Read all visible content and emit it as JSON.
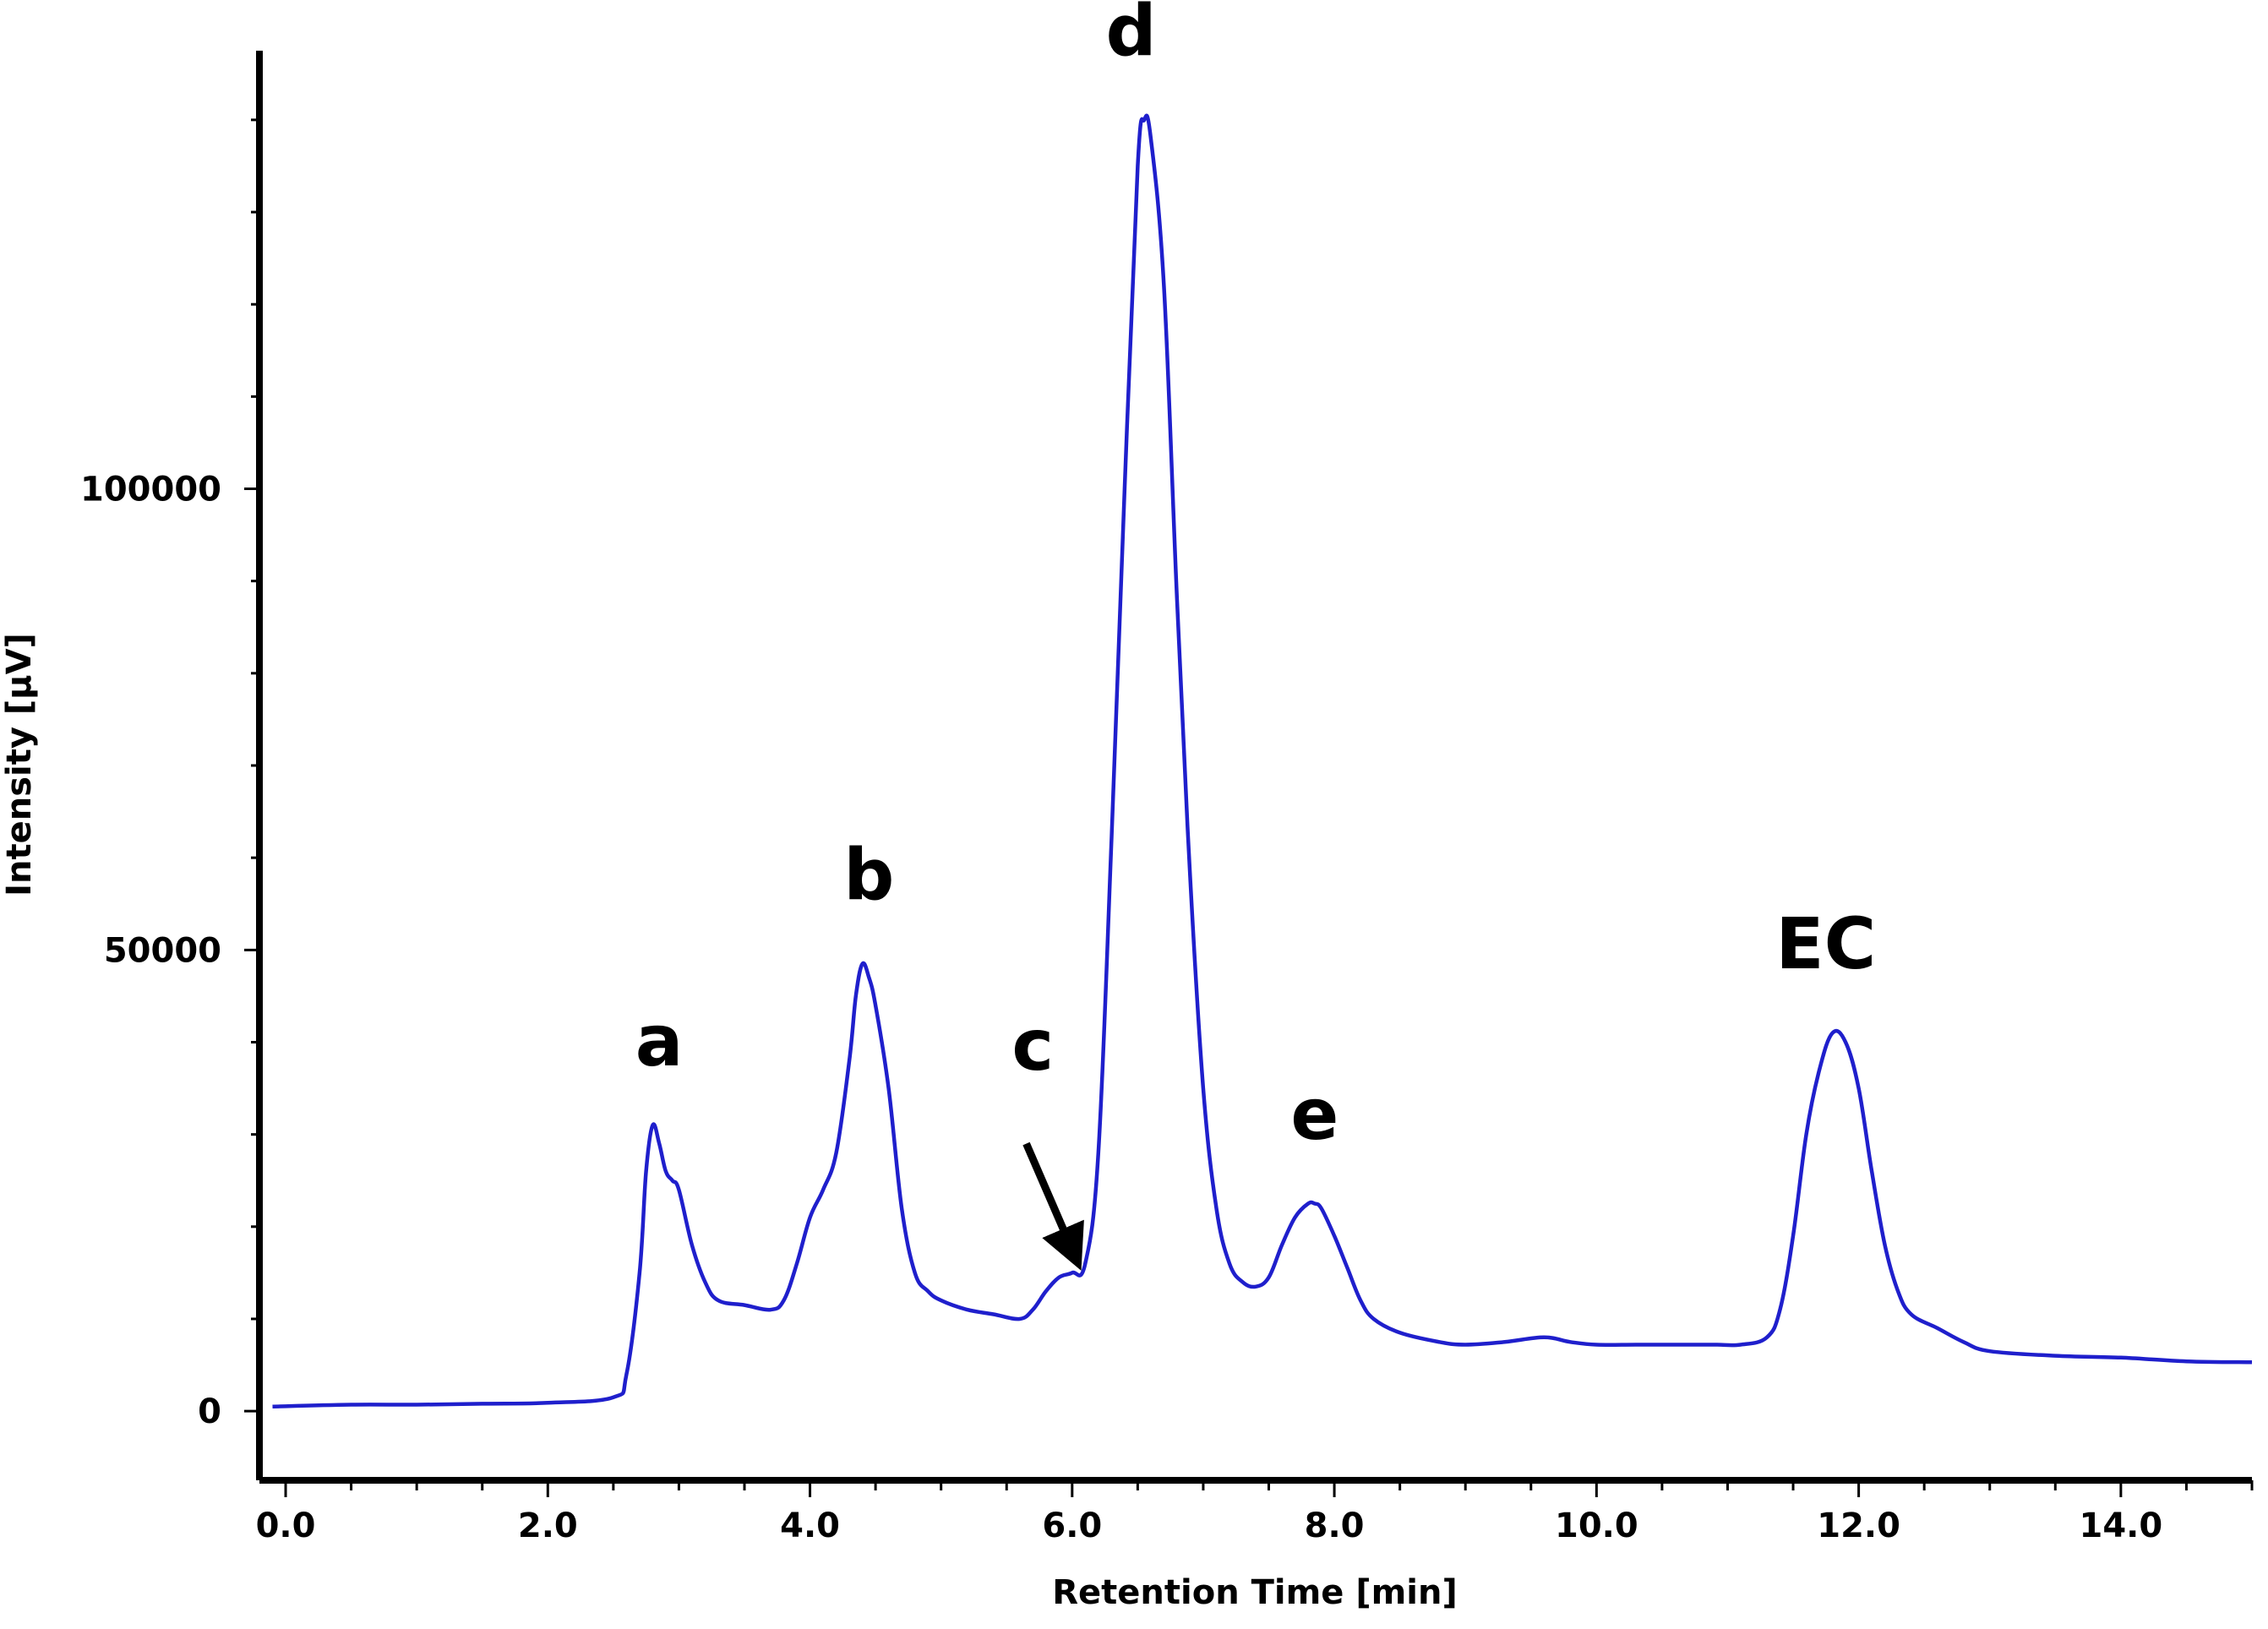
{
  "chart_data": {
    "type": "line",
    "title": "",
    "xlabel": "Retention Time [min]",
    "ylabel": "Intensity [µV]",
    "xlim": [
      -0.2,
      15.0
    ],
    "ylim": [
      -7500,
      147500
    ],
    "x_ticks": [
      {
        "value": 0.0,
        "label": "0.0"
      },
      {
        "value": 2.0,
        "label": "2.0"
      },
      {
        "value": 4.0,
        "label": "4.0"
      },
      {
        "value": 6.0,
        "label": "6.0"
      },
      {
        "value": 8.0,
        "label": "8.0"
      },
      {
        "value": 10.0,
        "label": "10.0"
      },
      {
        "value": 12.0,
        "label": "12.0"
      },
      {
        "value": 14.0,
        "label": "14.0"
      }
    ],
    "y_ticks": [
      {
        "value": 0,
        "label": "0"
      },
      {
        "value": 50000,
        "label": "50000"
      },
      {
        "value": 100000,
        "label": "100000"
      }
    ],
    "grid": false,
    "line_color": "#1f1fcc",
    "series": [
      {
        "name": "chromatogram",
        "x": [
          -0.1,
          0.5,
          1.0,
          1.5,
          2.0,
          2.5,
          2.6,
          2.7,
          2.75,
          2.8,
          2.85,
          2.9,
          2.95,
          3.0,
          3.1,
          3.2,
          3.3,
          3.5,
          3.7,
          3.8,
          3.9,
          4.0,
          4.1,
          4.2,
          4.3,
          4.35,
          4.4,
          4.45,
          4.5,
          4.6,
          4.7,
          4.8,
          4.9,
          5.0,
          5.2,
          5.4,
          5.6,
          5.7,
          5.8,
          5.9,
          6.0,
          6.1,
          6.2,
          6.3,
          6.4,
          6.5,
          6.55,
          6.6,
          6.7,
          6.8,
          6.9,
          7.0,
          7.1,
          7.2,
          7.3,
          7.4,
          7.5,
          7.6,
          7.7,
          7.8,
          7.85,
          7.9,
          8.0,
          8.1,
          8.2,
          8.3,
          8.5,
          8.8,
          9.0,
          9.3,
          9.6,
          9.8,
          10.0,
          10.3,
          10.6,
          10.9,
          11.1,
          11.3,
          11.4,
          11.5,
          11.6,
          11.7,
          11.8,
          11.9,
          12.0,
          12.1,
          12.2,
          12.3,
          12.4,
          12.6,
          12.8,
          13.0,
          13.5,
          14.0,
          14.5,
          15.0
        ],
        "y": [
          500,
          700,
          700,
          800,
          900,
          1500,
          4000,
          15000,
          26000,
          31000,
          29000,
          26000,
          25000,
          24000,
          18000,
          14000,
          12000,
          11500,
          11000,
          12000,
          16000,
          21000,
          24000,
          28000,
          38000,
          45000,
          48500,
          47000,
          44000,
          35000,
          22000,
          15000,
          13000,
          12000,
          11000,
          10500,
          10000,
          11000,
          13000,
          14500,
          15000,
          16000,
          28000,
          62000,
          100000,
          135000,
          140000,
          138000,
          122000,
          88000,
          58000,
          35000,
          22000,
          16000,
          14000,
          13500,
          14500,
          18000,
          21000,
          22500,
          22500,
          22000,
          19000,
          15500,
          12000,
          10000,
          8500,
          7500,
          7200,
          7500,
          8000,
          7500,
          7200,
          7200,
          7200,
          7200,
          7200,
          8000,
          11000,
          19000,
          30000,
          37000,
          41000,
          40000,
          35000,
          26000,
          18000,
          13000,
          10500,
          9000,
          7500,
          6500,
          6000,
          5800,
          5400,
          5300
        ]
      }
    ],
    "annotations": [
      {
        "text": "a",
        "x": 2.85,
        "y": 37500
      },
      {
        "text": "b",
        "x": 4.45,
        "y": 55500
      },
      {
        "text": "c",
        "x": 5.7,
        "y": 37000
      },
      {
        "text": "d",
        "x": 6.45,
        "y": 147000
      },
      {
        "text": "e",
        "x": 7.85,
        "y": 29500
      },
      {
        "text": "EC",
        "x": 11.75,
        "y": 48000
      }
    ],
    "arrow": {
      "from": [
        5.65,
        29000
      ],
      "to": [
        6.0,
        17500
      ]
    }
  }
}
